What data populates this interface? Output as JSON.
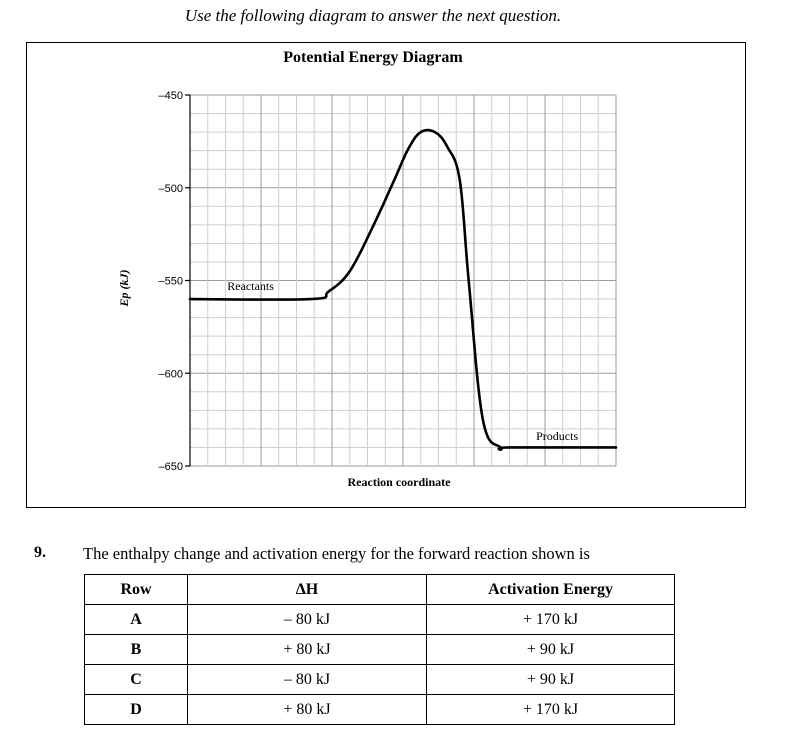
{
  "instruction": "Use the following diagram to answer the next question.",
  "chart_data": {
    "type": "line",
    "title": "Potential Energy Diagram",
    "xlabel": "Reaction coordinate",
    "ylabel": "Ep (kJ)",
    "ylim": [
      -650,
      -450
    ],
    "yticks": [
      {
        "value": -450,
        "label": "–450"
      },
      {
        "value": -500,
        "label": "–500"
      },
      {
        "value": -550,
        "label": "–550"
      },
      {
        "value": -600,
        "label": "–600"
      },
      {
        "value": -650,
        "label": "–650"
      }
    ],
    "grid": true,
    "curve": {
      "points": [
        [
          0,
          -560
        ],
        [
          6.8,
          -560
        ],
        [
          7.8,
          -556
        ],
        [
          9,
          -545
        ],
        [
          10.3,
          -521
        ],
        [
          11.5,
          -496
        ],
        [
          12.3,
          -479
        ],
        [
          13.0,
          -470
        ],
        [
          13.8,
          -470
        ],
        [
          14.5,
          -478
        ],
        [
          15.2,
          -496
        ],
        [
          15.7,
          -550
        ],
        [
          16.5,
          -625
        ],
        [
          17.5,
          -640
        ],
        [
          18.0,
          -640
        ],
        [
          24,
          -640
        ]
      ]
    },
    "annotations": [
      {
        "text": "Reactants",
        "x": 2.1,
        "y": -555
      },
      {
        "text": "Products",
        "x": 19.5,
        "y": -636
      }
    ]
  },
  "question": {
    "number": "9.",
    "text": "The enthalpy change and activation energy for the forward reaction shown is",
    "headers": [
      "Row",
      "ΔH",
      "Activation Energy"
    ],
    "rows": [
      {
        "row": "A",
        "dh": "– 80 kJ",
        "ea": "+ 170 kJ"
      },
      {
        "row": "B",
        "dh": "+ 80 kJ",
        "ea": "+ 90 kJ"
      },
      {
        "row": "C",
        "dh": "– 80 kJ",
        "ea": "+ 90 kJ"
      },
      {
        "row": "D",
        "dh": "+ 80 kJ",
        "ea": "+ 170 kJ"
      }
    ]
  }
}
